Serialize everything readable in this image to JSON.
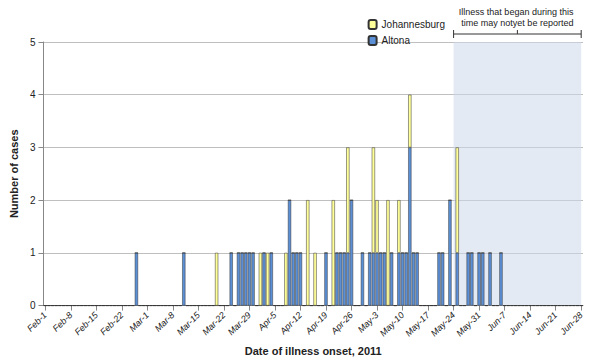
{
  "chart_data": {
    "type": "bar",
    "stacked": true,
    "x_label": "Date of illness onset, 2011",
    "y_label": "Number of cases",
    "categories": [
      "Feb-1",
      null,
      null,
      null,
      null,
      null,
      null,
      "Feb-8",
      null,
      null,
      null,
      null,
      null,
      null,
      "Feb-15",
      null,
      null,
      null,
      null,
      null,
      null,
      "Feb-22",
      null,
      null,
      null,
      null,
      null,
      null,
      "Mar-1",
      null,
      null,
      null,
      null,
      null,
      null,
      "Mar-8",
      null,
      null,
      null,
      null,
      null,
      null,
      "Mar-15",
      null,
      null,
      null,
      null,
      null,
      null,
      "Mar-22",
      null,
      null,
      null,
      null,
      null,
      null,
      "Mar-29",
      null,
      null,
      null,
      null,
      null,
      null,
      "Apr-5",
      null,
      null,
      null,
      null,
      null,
      null,
      "Apr-12",
      null,
      null,
      null,
      null,
      null,
      null,
      "Apr-19",
      null,
      null,
      null,
      null,
      null,
      null,
      "Apr-26",
      null,
      null,
      null,
      null,
      null,
      null,
      "May-3",
      null,
      null,
      null,
      null,
      null,
      null,
      "May-10",
      null,
      null,
      null,
      null,
      null,
      null,
      "May-17",
      null,
      null,
      null,
      null,
      null,
      null,
      "May-24",
      null,
      null,
      null,
      null,
      null,
      null,
      "May-31",
      null,
      null,
      null,
      null,
      null,
      null,
      "Jun-7",
      null,
      null,
      null,
      null,
      null,
      null,
      "Jun-14",
      null,
      null,
      null,
      null,
      null,
      null,
      "Jun-21",
      null,
      null,
      null,
      null,
      null,
      null,
      "Jun-28"
    ],
    "series": [
      {
        "name": "Altona",
        "color": "#5b8fd6",
        "values": [
          0,
          0,
          0,
          0,
          0,
          0,
          0,
          0,
          0,
          0,
          0,
          0,
          0,
          0,
          0,
          0,
          0,
          0,
          0,
          0,
          0,
          0,
          0,
          0,
          0,
          1,
          0,
          0,
          0,
          0,
          0,
          0,
          0,
          0,
          0,
          0,
          0,
          0,
          1,
          0,
          0,
          0,
          0,
          0,
          0,
          0,
          0,
          0,
          0,
          0,
          0,
          1,
          0,
          1,
          1,
          1,
          1,
          1,
          0,
          0,
          1,
          0,
          1,
          0,
          0,
          0,
          0,
          2,
          1,
          1,
          1,
          0,
          0,
          0,
          0,
          0,
          0,
          1,
          0,
          0,
          1,
          1,
          1,
          1,
          2,
          0,
          0,
          1,
          0,
          1,
          1,
          1,
          1,
          1,
          0,
          1,
          0,
          1,
          1,
          1,
          3,
          1,
          1,
          0,
          0,
          0,
          0,
          0,
          1,
          1,
          0,
          2,
          0,
          1,
          0,
          0,
          1,
          1,
          0,
          1,
          1,
          0,
          1,
          0,
          0,
          1,
          0,
          0,
          0,
          0,
          0,
          0,
          0,
          0,
          0,
          0,
          0,
          0,
          0,
          0,
          0,
          0,
          0,
          0,
          0,
          0,
          0,
          0
        ]
      },
      {
        "name": "Johannesburg",
        "color": "#ffff99",
        "values": [
          0,
          0,
          0,
          0,
          0,
          0,
          0,
          0,
          0,
          0,
          0,
          0,
          0,
          0,
          0,
          0,
          0,
          0,
          0,
          0,
          0,
          0,
          0,
          0,
          0,
          0,
          0,
          0,
          0,
          0,
          0,
          0,
          0,
          0,
          0,
          0,
          0,
          0,
          0,
          0,
          0,
          0,
          0,
          0,
          0,
          0,
          0,
          1,
          0,
          0,
          0,
          0,
          0,
          0,
          0,
          0,
          0,
          0,
          0,
          1,
          0,
          1,
          0,
          0,
          0,
          0,
          1,
          0,
          0,
          0,
          0,
          0,
          2,
          0,
          1,
          0,
          0,
          0,
          0,
          2,
          0,
          0,
          0,
          2,
          0,
          0,
          0,
          0,
          0,
          0,
          2,
          1,
          0,
          0,
          2,
          0,
          0,
          1,
          0,
          0,
          1,
          0,
          0,
          0,
          0,
          0,
          0,
          0,
          0,
          0,
          0,
          0,
          0,
          2,
          0,
          0,
          0,
          0,
          0,
          0,
          0,
          0,
          0,
          0,
          0,
          0,
          0,
          0,
          0,
          0,
          0,
          0,
          0,
          0,
          0,
          0,
          0,
          0,
          0,
          0,
          0,
          0,
          0,
          0,
          0,
          0,
          0,
          0
        ]
      }
    ],
    "ylim": [
      0,
      5
    ],
    "yticks": [
      0,
      1,
      2,
      3,
      4,
      5
    ],
    "grid": true,
    "legend": "top-right",
    "annotation": {
      "text": "Illness that began during this time may notyet be reported",
      "x_range": [
        "May-24",
        "Jun-28"
      ]
    }
  }
}
